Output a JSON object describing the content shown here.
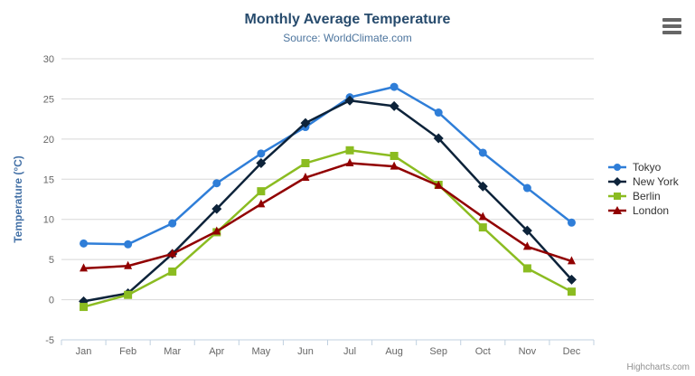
{
  "chart": {
    "title": "Monthly Average Temperature",
    "subtitle": "Source: WorldClimate.com",
    "credits": "Highcharts.com",
    "export_menu_icon": "hamburger"
  },
  "colors": {
    "title": "#274b6d",
    "subtitle": "#4d759e",
    "axis_title": "#4572a7",
    "tick_label": "#666666",
    "grid_line": "#d8d8d8",
    "axis_line": "#c0d0e0",
    "legend_text": "#333333",
    "credits": "#909090",
    "menu_icon": "#666666",
    "background": "#ffffff"
  },
  "chart_data": {
    "type": "line",
    "title": "Monthly Average Temperature",
    "subtitle": "Source: WorldClimate.com",
    "xlabel": "",
    "ylabel": "Temperature (°C)",
    "categories": [
      "Jan",
      "Feb",
      "Mar",
      "Apr",
      "May",
      "Jun",
      "Jul",
      "Aug",
      "Sep",
      "Oct",
      "Nov",
      "Dec"
    ],
    "ylim": [
      -5,
      30
    ],
    "y_ticks": [
      -5,
      0,
      5,
      10,
      15,
      20,
      25,
      30
    ],
    "grid": true,
    "legend_position": "right",
    "series": [
      {
        "name": "Tokyo",
        "color": "#2f7ed8",
        "marker": "circle",
        "values": [
          7.0,
          6.9,
          9.5,
          14.5,
          18.2,
          21.5,
          25.2,
          26.5,
          23.3,
          18.3,
          13.9,
          9.6
        ]
      },
      {
        "name": "New York",
        "color": "#0d233a",
        "marker": "diamond",
        "values": [
          -0.2,
          0.8,
          5.7,
          11.3,
          17.0,
          22.0,
          24.8,
          24.1,
          20.1,
          14.1,
          8.6,
          2.5
        ]
      },
      {
        "name": "Berlin",
        "color": "#8bbc21",
        "marker": "square",
        "values": [
          -0.9,
          0.6,
          3.5,
          8.4,
          13.5,
          17.0,
          18.6,
          17.9,
          14.3,
          9.0,
          3.9,
          1.0
        ]
      },
      {
        "name": "London",
        "color": "#910000",
        "marker": "triangle",
        "values": [
          3.9,
          4.2,
          5.7,
          8.5,
          11.9,
          15.2,
          17.0,
          16.6,
          14.2,
          10.3,
          6.6,
          4.8
        ]
      }
    ]
  }
}
